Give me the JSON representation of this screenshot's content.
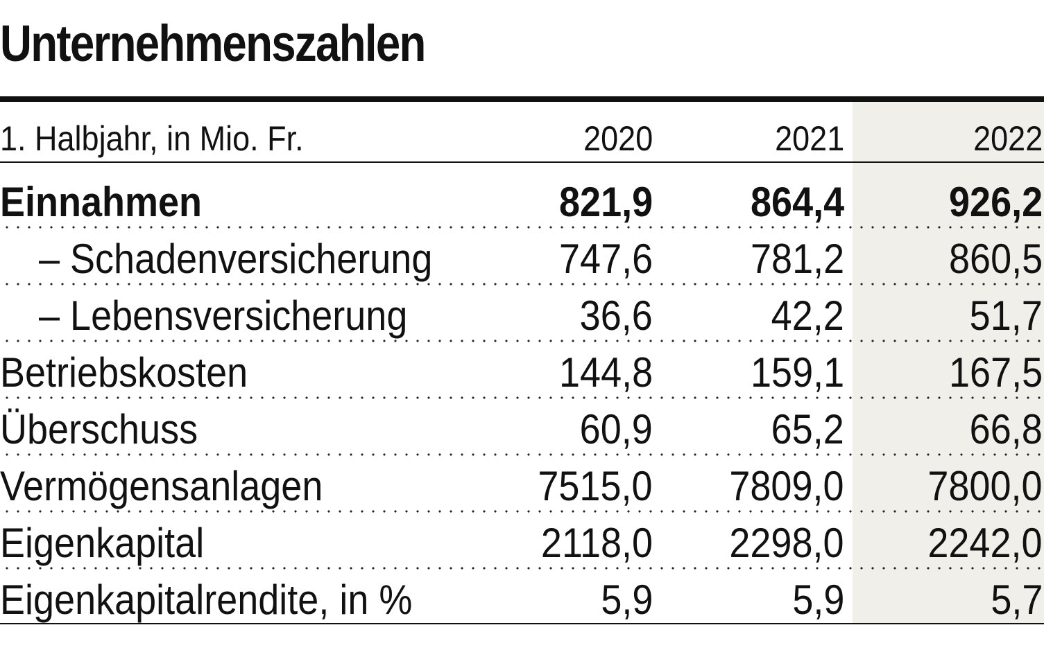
{
  "title": "Unternehmenszahlen",
  "colors": {
    "text": "#111111",
    "rule": "#111111",
    "highlight_column": "#f0efea"
  },
  "chart_data": {
    "type": "table",
    "title": "Unternehmenszahlen",
    "header_label": "1. Halbjahr, in Mio. Fr.",
    "columns": [
      "2020",
      "2021",
      "2022"
    ],
    "highlighted_column": "2022",
    "rows": [
      {
        "label": "Einnahmen",
        "bold": true,
        "indent": false,
        "values": [
          "821,9",
          "864,4",
          "926,2"
        ]
      },
      {
        "label": "– Schadenversicherung",
        "bold": false,
        "indent": true,
        "values": [
          "747,6",
          "781,2",
          "860,5"
        ]
      },
      {
        "label": "– Lebensversicherung",
        "bold": false,
        "indent": true,
        "values": [
          "36,6",
          "42,2",
          "51,7"
        ]
      },
      {
        "label": "Betriebskosten",
        "bold": false,
        "indent": false,
        "values": [
          "144,8",
          "159,1",
          "167,5"
        ]
      },
      {
        "label": "Überschuss",
        "bold": false,
        "indent": false,
        "values": [
          "60,9",
          "65,2",
          "66,8"
        ]
      },
      {
        "label": "Vermögensanlagen",
        "bold": false,
        "indent": false,
        "values": [
          "7515,0",
          "7809,0",
          "7800,0"
        ]
      },
      {
        "label": "Eigenkapital",
        "bold": false,
        "indent": false,
        "values": [
          "2118,0",
          "2298,0",
          "2242,0"
        ]
      },
      {
        "label": "Eigenkapitalrendite, in %",
        "bold": false,
        "indent": false,
        "values": [
          "5,9",
          "5,9",
          "5,7"
        ]
      }
    ]
  }
}
